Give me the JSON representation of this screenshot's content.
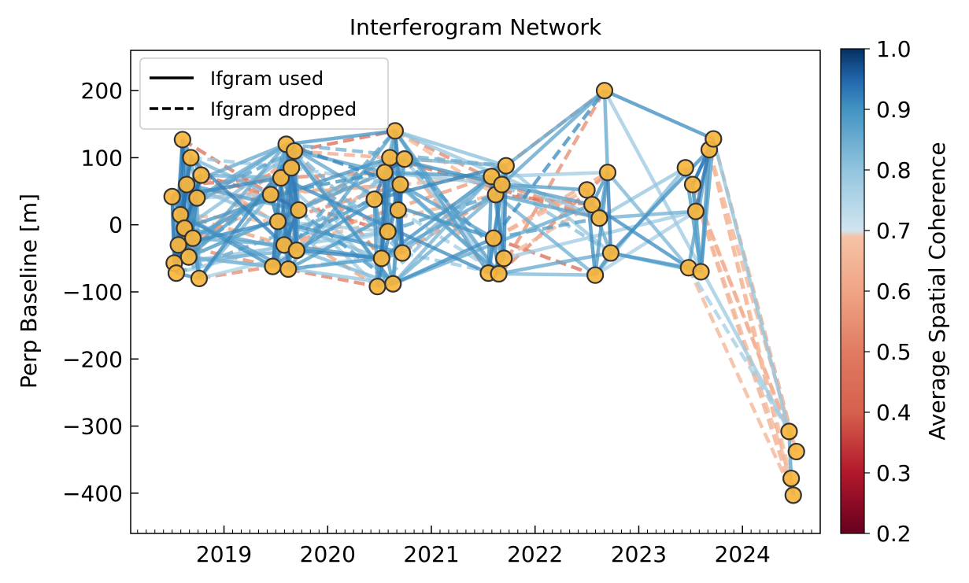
{
  "chart_data": {
    "type": "scatter",
    "title": "Interferogram Network",
    "xlabel": "",
    "ylabel": "Perp Baseline [m]",
    "xlim": [
      2018.1,
      2024.75
    ],
    "ylim": [
      -460,
      260
    ],
    "xticks": [
      2019,
      2020,
      2021,
      2022,
      2023,
      2024
    ],
    "yticks": [
      200,
      100,
      0,
      -100,
      -200,
      -300,
      -400
    ],
    "y_tick_labels": [
      "200",
      "100",
      "0",
      "−100",
      "−200",
      "−300",
      "−400"
    ],
    "legend": {
      "placement": "upper-left",
      "entries": [
        {
          "label": "Ifgram used",
          "style": "solid"
        },
        {
          "label": "Ifgram dropped",
          "style": "dashed"
        }
      ]
    },
    "colorbar": {
      "label": "Average Spatial Coherence",
      "range": [
        0.2,
        1.0
      ],
      "ticks": [
        "0.2",
        "0.3",
        "0.4",
        "0.5",
        "0.6",
        "0.7",
        "0.8",
        "0.9",
        "1.0"
      ],
      "colormap": "RdBu truncated at 0.7",
      "stops": [
        {
          "v": 0.2,
          "color": "#67001f"
        },
        {
          "v": 0.3,
          "color": "#b2182b"
        },
        {
          "v": 0.4,
          "color": "#d6604d"
        },
        {
          "v": 0.5,
          "color": "#e07b62"
        },
        {
          "v": 0.6,
          "color": "#f0a585"
        },
        {
          "v": 0.69,
          "color": "#f6c2a6"
        },
        {
          "v": 0.7,
          "color": "#d1e5f0"
        },
        {
          "v": 0.8,
          "color": "#92c5de"
        },
        {
          "v": 0.9,
          "color": "#4393c3"
        },
        {
          "v": 0.95,
          "color": "#2166ac"
        },
        {
          "v": 1.0,
          "color": "#053061"
        }
      ]
    },
    "acquisitions": [
      {
        "t": 2018.5,
        "b": 42
      },
      {
        "t": 2018.52,
        "b": -57
      },
      {
        "t": 2018.54,
        "b": -72
      },
      {
        "t": 2018.56,
        "b": -30
      },
      {
        "t": 2018.58,
        "b": 15
      },
      {
        "t": 2018.6,
        "b": 127
      },
      {
        "t": 2018.62,
        "b": -5
      },
      {
        "t": 2018.64,
        "b": 60
      },
      {
        "t": 2018.66,
        "b": -48
      },
      {
        "t": 2018.68,
        "b": 100
      },
      {
        "t": 2018.7,
        "b": -20
      },
      {
        "t": 2018.74,
        "b": 40
      },
      {
        "t": 2018.76,
        "b": -80
      },
      {
        "t": 2018.78,
        "b": 74
      },
      {
        "t": 2019.45,
        "b": 45
      },
      {
        "t": 2019.47,
        "b": -62
      },
      {
        "t": 2019.52,
        "b": 5
      },
      {
        "t": 2019.55,
        "b": 70
      },
      {
        "t": 2019.58,
        "b": -30
      },
      {
        "t": 2019.6,
        "b": 120
      },
      {
        "t": 2019.62,
        "b": -66
      },
      {
        "t": 2019.65,
        "b": 85
      },
      {
        "t": 2019.68,
        "b": 110
      },
      {
        "t": 2019.7,
        "b": -38
      },
      {
        "t": 2019.72,
        "b": 22
      },
      {
        "t": 2020.45,
        "b": 38
      },
      {
        "t": 2020.48,
        "b": -92
      },
      {
        "t": 2020.52,
        "b": -50
      },
      {
        "t": 2020.55,
        "b": 78
      },
      {
        "t": 2020.58,
        "b": -10
      },
      {
        "t": 2020.6,
        "b": 100
      },
      {
        "t": 2020.63,
        "b": -88
      },
      {
        "t": 2020.65,
        "b": 140
      },
      {
        "t": 2020.68,
        "b": 22
      },
      {
        "t": 2020.7,
        "b": 60
      },
      {
        "t": 2020.72,
        "b": -42
      },
      {
        "t": 2020.74,
        "b": 98
      },
      {
        "t": 2021.55,
        "b": -72
      },
      {
        "t": 2021.58,
        "b": 72
      },
      {
        "t": 2021.6,
        "b": -20
      },
      {
        "t": 2021.62,
        "b": 45
      },
      {
        "t": 2021.65,
        "b": -73
      },
      {
        "t": 2021.68,
        "b": 60
      },
      {
        "t": 2021.7,
        "b": -50
      },
      {
        "t": 2021.72,
        "b": 88
      },
      {
        "t": 2022.5,
        "b": 52
      },
      {
        "t": 2022.55,
        "b": 30
      },
      {
        "t": 2022.58,
        "b": -75
      },
      {
        "t": 2022.62,
        "b": 10
      },
      {
        "t": 2022.67,
        "b": 200
      },
      {
        "t": 2022.7,
        "b": 78
      },
      {
        "t": 2022.73,
        "b": -42
      },
      {
        "t": 2023.45,
        "b": 85
      },
      {
        "t": 2023.48,
        "b": -64
      },
      {
        "t": 2023.52,
        "b": 60
      },
      {
        "t": 2023.55,
        "b": 20
      },
      {
        "t": 2023.6,
        "b": -70
      },
      {
        "t": 2023.68,
        "b": 112
      },
      {
        "t": 2023.72,
        "b": 128
      },
      {
        "t": 2024.45,
        "b": -308
      },
      {
        "t": 2024.47,
        "b": -378
      },
      {
        "t": 2024.49,
        "b": -403
      },
      {
        "t": 2024.52,
        "b": -338
      }
    ]
  }
}
